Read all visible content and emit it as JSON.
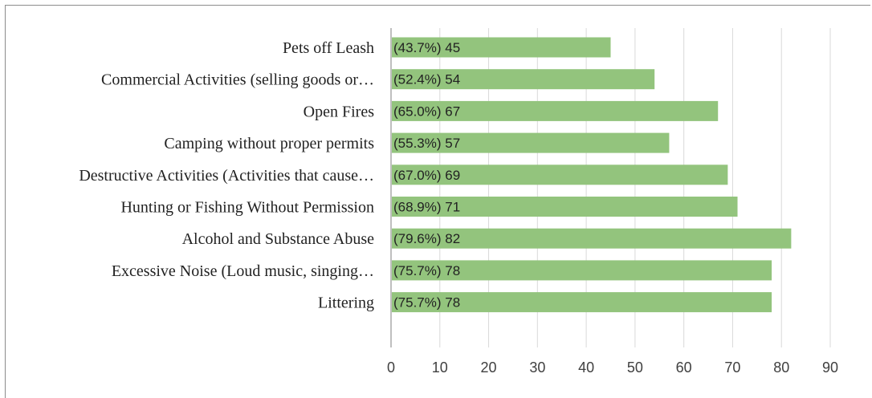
{
  "chart_data": {
    "type": "bar",
    "orientation": "horizontal",
    "categories": [
      "Pets off Leash",
      "Commercial Activities (selling goods or…",
      "Open Fires",
      "Camping without proper permits",
      "Destructive Activities (Activities that cause…",
      "Hunting or Fishing Without Permission",
      "Alcohol and Substance Abuse",
      "Excessive Noise (Loud music, singing…",
      "Littering"
    ],
    "values": [
      45,
      54,
      67,
      57,
      69,
      71,
      82,
      78,
      78
    ],
    "data_labels": [
      "(43.7%) 45",
      "(52.4%) 54",
      "(65.0%) 67",
      "(55.3%) 57",
      "(67.0%) 69",
      "(68.9%) 71",
      "(79.6%) 82",
      "(75.7%) 78",
      "(75.7%) 78"
    ],
    "xlim": [
      0,
      90
    ],
    "xticks": [
      0,
      10,
      20,
      30,
      40,
      50,
      60,
      70,
      80,
      90
    ],
    "xtick_labels": [
      "0",
      "10",
      "20",
      "30",
      "40",
      "50",
      "60",
      "70",
      "80",
      "90"
    ],
    "grid": true,
    "bar_color": "#93c47d",
    "title": "",
    "xlabel": "",
    "ylabel": ""
  }
}
